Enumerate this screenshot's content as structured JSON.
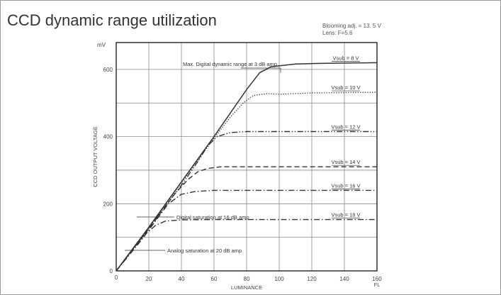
{
  "chart_data": {
    "type": "line",
    "title": "CCD dynamic range utilization",
    "notes": [
      "Blooming adj. = 13. 5 V",
      "Lens: F=5.6"
    ],
    "xlabel": "LUMINANCE",
    "x_unit": "FL",
    "ylabel": "CCD OUTPUT VOLTAGE",
    "y_unit": "mV",
    "xlim": [
      0,
      160
    ],
    "ylim": [
      0,
      680
    ],
    "x_ticks": [
      0,
      20,
      40,
      60,
      80,
      100,
      120,
      140,
      160
    ],
    "y_ticks": [
      0,
      200,
      400,
      600
    ],
    "grid": true,
    "series": [
      {
        "name": "Vsub = 8 V",
        "style": "solid",
        "points": [
          [
            0,
            0
          ],
          [
            10,
            65
          ],
          [
            20,
            130
          ],
          [
            40,
            265
          ],
          [
            60,
            400
          ],
          [
            70,
            470
          ],
          [
            80,
            540
          ],
          [
            88,
            590
          ],
          [
            95,
            608
          ],
          [
            110,
            616
          ],
          [
            125,
            618
          ],
          [
            160,
            620
          ]
        ]
      },
      {
        "name": "Vsub = 10 V",
        "style": "dotted",
        "points": [
          [
            0,
            0
          ],
          [
            20,
            130
          ],
          [
            40,
            262
          ],
          [
            60,
            395
          ],
          [
            70,
            458
          ],
          [
            78,
            500
          ],
          [
            84,
            522
          ],
          [
            92,
            528
          ],
          [
            100,
            526
          ],
          [
            120,
            530
          ],
          [
            160,
            532
          ]
        ]
      },
      {
        "name": "Vsub = 12 V",
        "style": "dashdotdot",
        "points": [
          [
            0,
            0
          ],
          [
            20,
            128
          ],
          [
            40,
            255
          ],
          [
            50,
            325
          ],
          [
            56,
            372
          ],
          [
            62,
            400
          ],
          [
            70,
            412
          ],
          [
            80,
            415
          ],
          [
            160,
            415
          ]
        ]
      },
      {
        "name": "Vsub = 14 V",
        "style": "dashed",
        "points": [
          [
            0,
            0
          ],
          [
            20,
            125
          ],
          [
            36,
            230
          ],
          [
            44,
            272
          ],
          [
            50,
            295
          ],
          [
            56,
            305
          ],
          [
            64,
            310
          ],
          [
            160,
            310
          ]
        ]
      },
      {
        "name": "Vsub = 16 V",
        "style": "dashdot",
        "points": [
          [
            0,
            0
          ],
          [
            16,
            95
          ],
          [
            24,
            148
          ],
          [
            32,
            200
          ],
          [
            40,
            228
          ],
          [
            48,
            236
          ],
          [
            60,
            240
          ],
          [
            160,
            240
          ]
        ]
      },
      {
        "name": "Vsub = 18 V",
        "style": "dashdot",
        "points": [
          [
            0,
            0
          ],
          [
            12,
            75
          ],
          [
            18,
            110
          ],
          [
            24,
            135
          ],
          [
            30,
            148
          ],
          [
            40,
            152
          ],
          [
            60,
            153
          ],
          [
            160,
            153
          ]
        ]
      }
    ],
    "annotations": [
      {
        "text": "Max. Digital dynamic range at 3 dB amp",
        "x": 84,
        "y": 610
      },
      {
        "text": "Digital saturation at 16 dB amp",
        "x": 15,
        "y": 165
      },
      {
        "text": "Analog saturation at 20 dB amp",
        "x": 5,
        "y": 65
      }
    ]
  },
  "colors": {
    "line": "#333333",
    "grid": "#888888",
    "text": "#444444"
  }
}
